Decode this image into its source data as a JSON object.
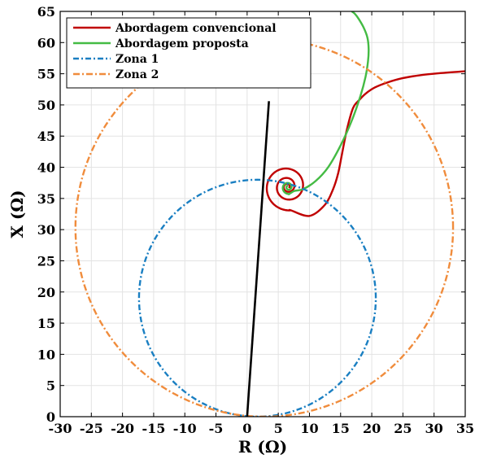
{
  "chart_data": {
    "type": "line",
    "xlabel": "R (Ω)",
    "ylabel": "X (Ω)",
    "xlim": [
      -30,
      35
    ],
    "ylim": [
      0,
      65
    ],
    "xticks": [
      -30,
      -25,
      -20,
      -15,
      -10,
      -5,
      0,
      5,
      10,
      15,
      20,
      25,
      30,
      35
    ],
    "yticks": [
      0,
      5,
      10,
      15,
      20,
      25,
      30,
      35,
      40,
      45,
      50,
      55,
      60,
      65
    ],
    "grid": true,
    "legend_position": "top-left",
    "line_of_impedance": {
      "x": [
        0,
        3.5
      ],
      "y": [
        0,
        50.6
      ],
      "color": "#000000"
    },
    "series": [
      {
        "name": "Abordagem convencional",
        "kind": "spiral-tail",
        "color": "#c00000",
        "spiral_center": [
          6.5,
          36.9
        ],
        "spiral_start_radius": 0.3,
        "spiral_end_radius": 3.85,
        "spiral_turns": 2.9,
        "tail_x": [
          10.0,
          12.5,
          13.8,
          14.6,
          15.2,
          16.0,
          17.0,
          18.0,
          19.0,
          20.5,
          22.5,
          25.0,
          28.0,
          31.0,
          35.0
        ],
        "tail_y": [
          32.2,
          34.0,
          36.5,
          39.0,
          42.0,
          46.0,
          49.5,
          50.8,
          51.8,
          52.8,
          53.6,
          54.3,
          54.8,
          55.1,
          55.4
        ]
      },
      {
        "name": "Abordagem proposta",
        "kind": "spiral-tail",
        "color": "#44bb44",
        "spiral_center": [
          6.6,
          36.8
        ],
        "spiral_start_radius": 0.25,
        "spiral_end_radius": 1.1,
        "spiral_turns": 1.5,
        "tail_x": [
          7.6,
          9.0,
          11.0,
          13.0,
          15.0,
          16.8,
          18.2,
          19.0,
          19.4,
          19.5,
          19.3,
          18.7,
          17.9,
          17.3,
          16.8
        ],
        "tail_y": [
          36.2,
          36.5,
          37.8,
          40.0,
          43.5,
          47.5,
          51.5,
          54.5,
          57.0,
          59.0,
          60.8,
          62.4,
          63.8,
          64.6,
          65.0
        ]
      },
      {
        "name": "Zona 1",
        "kind": "circle",
        "color": "#1a7fc2",
        "center": [
          1.65,
          19.0
        ],
        "radius": 19.0
      },
      {
        "name": "Zona 2",
        "kind": "circle",
        "color": "#f08c3c",
        "center": [
          2.75,
          30.3
        ],
        "radius": 30.3
      }
    ]
  }
}
